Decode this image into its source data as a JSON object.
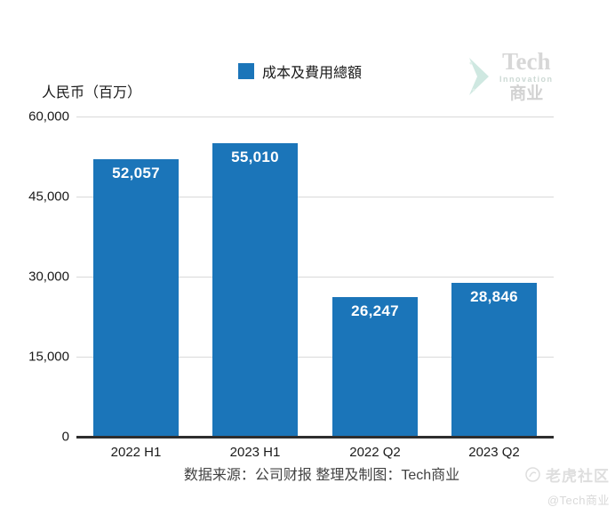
{
  "chart_data": {
    "type": "bar",
    "categories": [
      "2022 H1",
      "2023 H1",
      "2022 Q2",
      "2023 Q2"
    ],
    "values": [
      52057,
      55010,
      26247,
      28846
    ],
    "value_labels": [
      "52,057",
      "55,010",
      "26,247",
      "28,846"
    ],
    "series_name": "成本及費用總額",
    "ylabel": "人民币（百万）",
    "ylim": [
      0,
      60000
    ],
    "yticks": [
      0,
      15000,
      30000,
      45000,
      60000
    ],
    "ytick_labels": [
      "0",
      "15,000",
      "30,000",
      "45,000",
      "60,000"
    ],
    "grid": true,
    "legend_position": "top-center",
    "bar_color": "#1b75b9"
  },
  "legend": {
    "label": "成本及費用總額",
    "swatch_color": "#1b75b9"
  },
  "axes": {
    "y_unit_label": "人民币（百万）"
  },
  "footer": {
    "caption": "数据来源：公司财报 整理及制图：Tech商业"
  },
  "brand_logo": {
    "chevron_icon": "teal-chevron-icon",
    "top": "Tech",
    "middle": "Innovation",
    "bottom": "商业"
  },
  "community_watermark": {
    "icon": "tiger-community-icon",
    "name": "老虎社区",
    "handle": "@Tech商业"
  },
  "colors": {
    "bar": "#1b75b9",
    "gridline": "#d9d9d9",
    "axis_line": "#2e2e2e",
    "text": "#1a1a1a",
    "caption": "#424242",
    "watermark_gray": "#d7d7d7",
    "watermark_teal": "#cfe8e1",
    "bar_value_text": "#ffffff"
  }
}
